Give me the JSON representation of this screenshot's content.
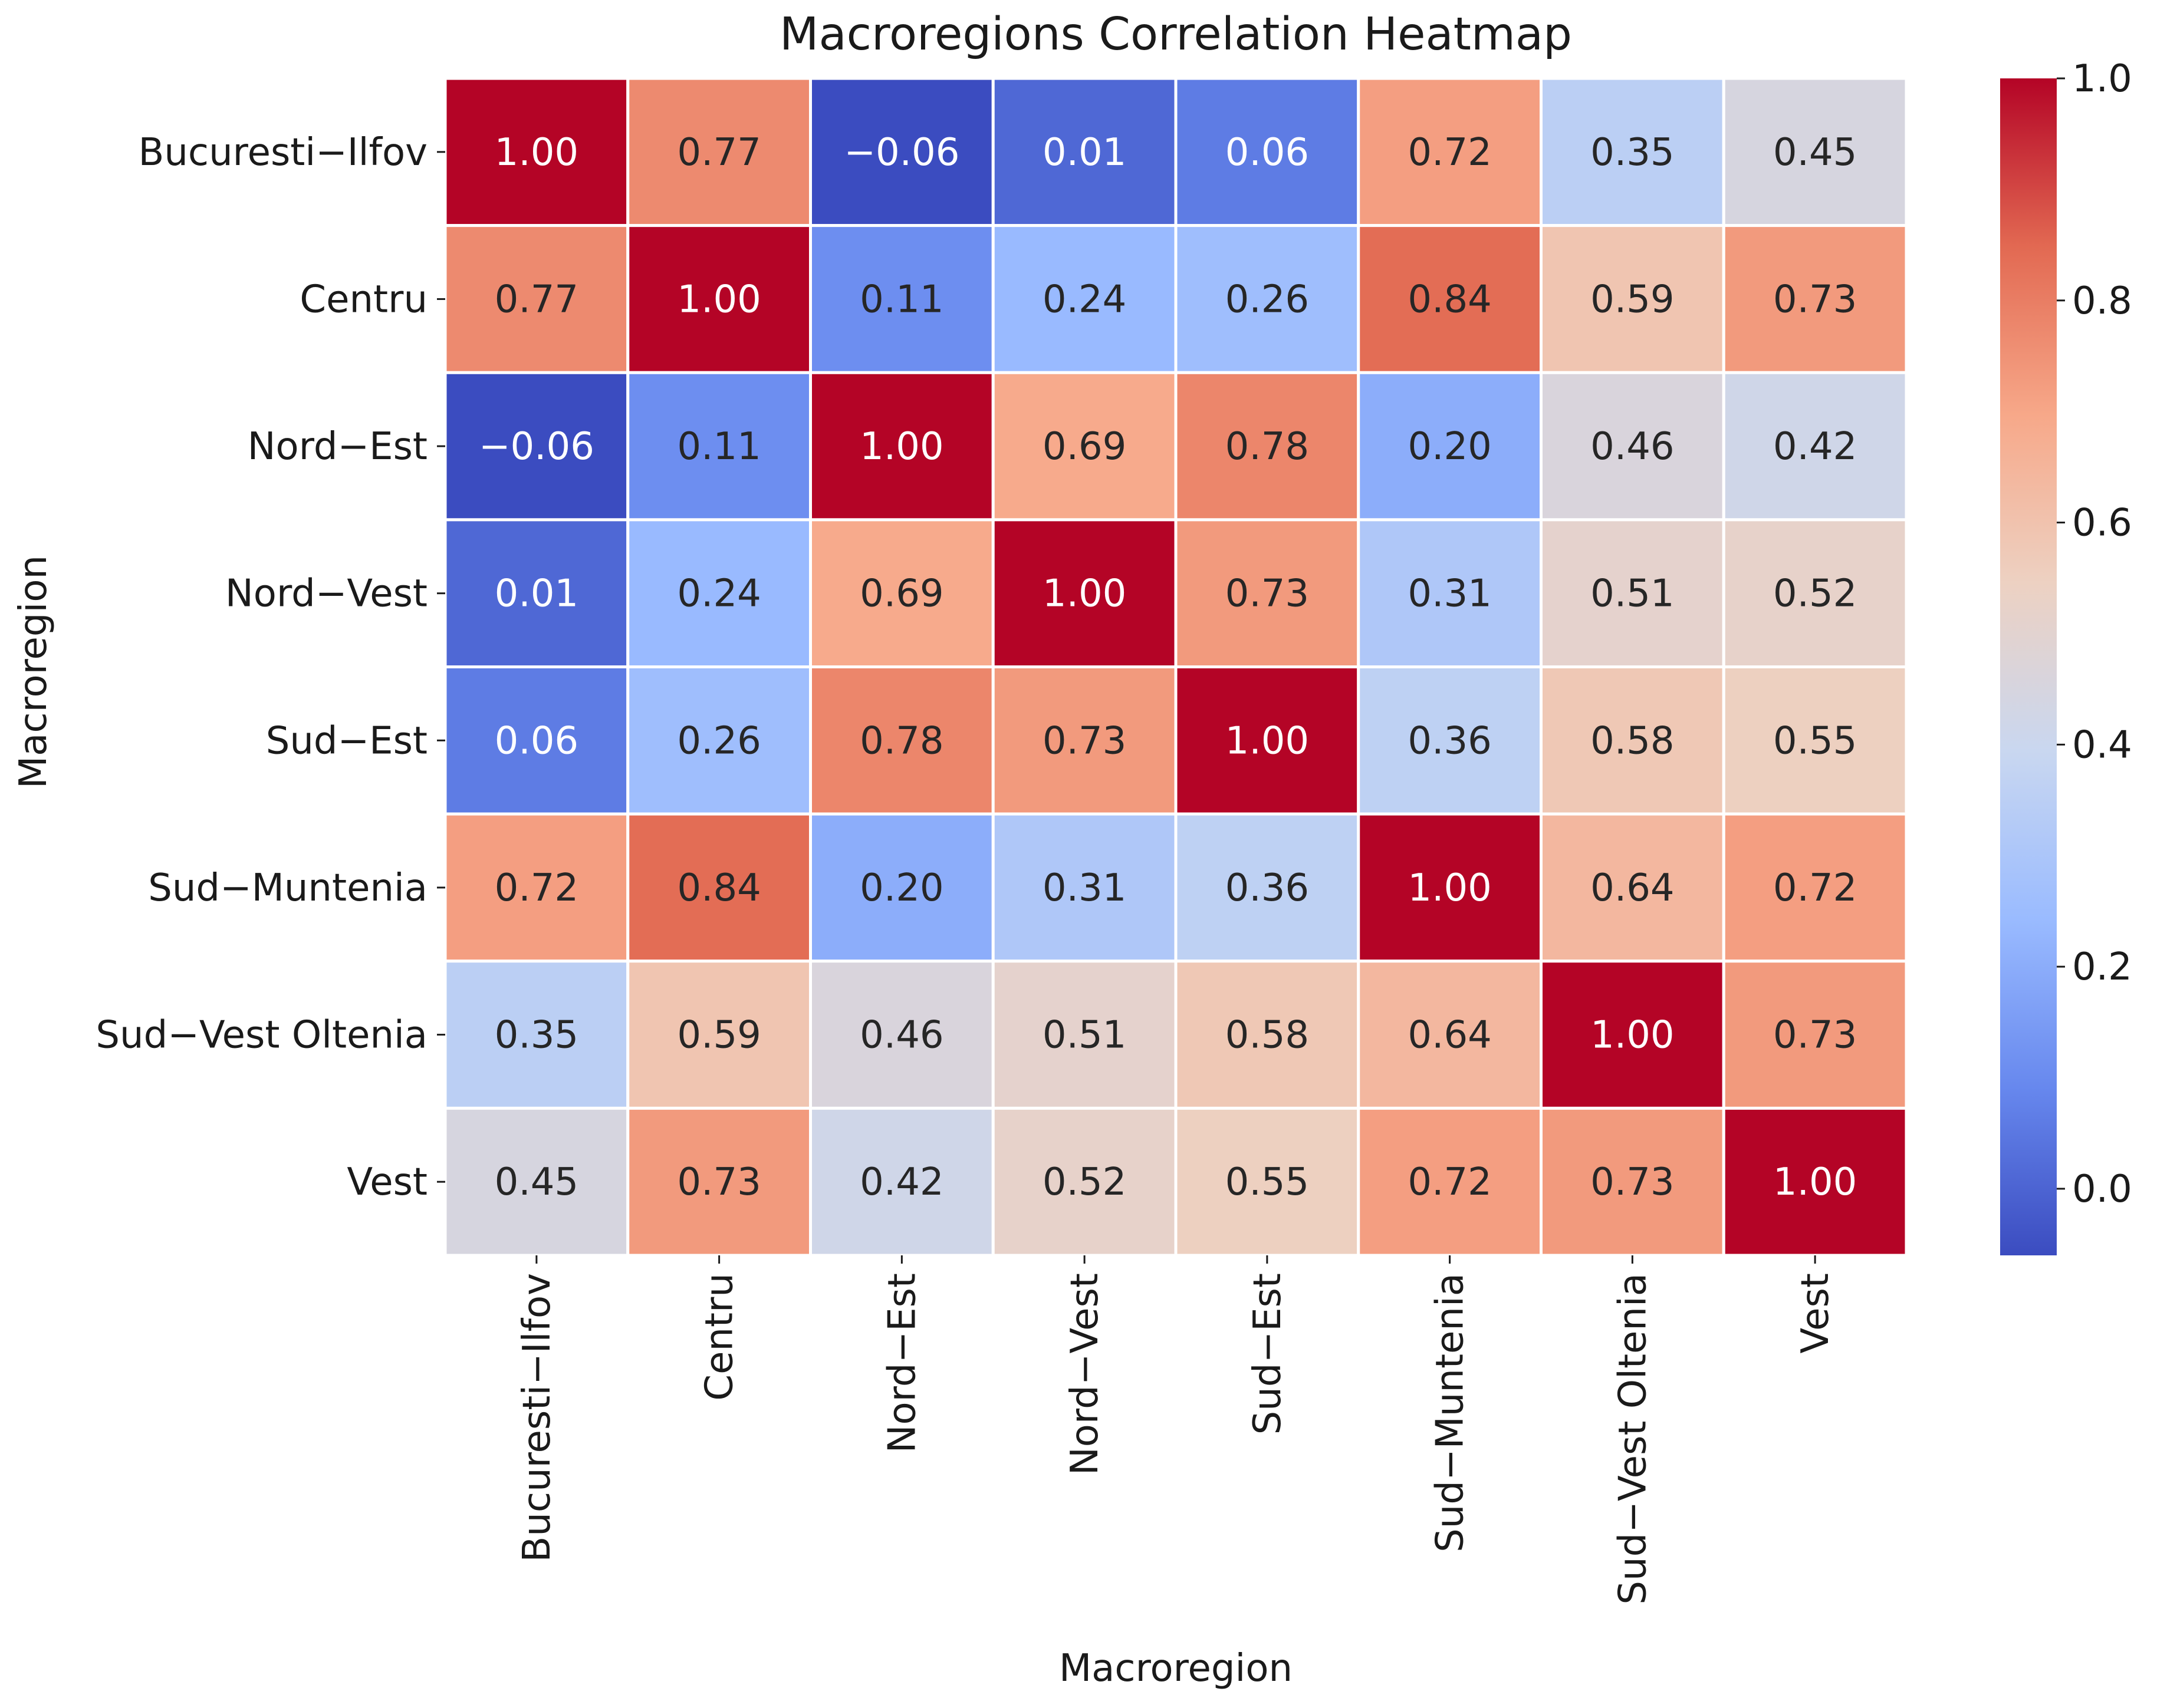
{
  "chart_data": {
    "type": "heatmap",
    "title": "Macroregions Correlation Heatmap",
    "xlabel": "Macroregion",
    "ylabel": "Macroregion",
    "categories": [
      "Bucuresti−Ilfov",
      "Centru",
      "Nord−Est",
      "Nord−Vest",
      "Sud−Est",
      "Sud−Muntenia",
      "Sud−Vest Oltenia",
      "Vest"
    ],
    "values": [
      [
        1.0,
        0.77,
        -0.06,
        0.01,
        0.06,
        0.72,
        0.35,
        0.45
      ],
      [
        0.77,
        1.0,
        0.11,
        0.24,
        0.26,
        0.84,
        0.59,
        0.73
      ],
      [
        -0.06,
        0.11,
        1.0,
        0.69,
        0.78,
        0.2,
        0.46,
        0.42
      ],
      [
        0.01,
        0.24,
        0.69,
        1.0,
        0.73,
        0.31,
        0.51,
        0.52
      ],
      [
        0.06,
        0.26,
        0.78,
        0.73,
        1.0,
        0.36,
        0.58,
        0.55
      ],
      [
        0.72,
        0.84,
        0.2,
        0.31,
        0.36,
        1.0,
        0.64,
        0.72
      ],
      [
        0.35,
        0.59,
        0.46,
        0.51,
        0.58,
        0.64,
        1.0,
        0.73
      ],
      [
        0.45,
        0.73,
        0.42,
        0.52,
        0.55,
        0.72,
        0.73,
        1.0
      ]
    ],
    "value_format": "2 decimals",
    "colormap": "coolwarm",
    "colormap_stops": [
      "#3b4cc0",
      "#6788ee",
      "#9abbff",
      "#c9d7f0",
      "#edd1c2",
      "#f7a889",
      "#e26952",
      "#b40426"
    ],
    "colorbar": {
      "range": [
        -0.06,
        1.0
      ],
      "ticks": [
        0.0,
        0.2,
        0.4,
        0.6,
        0.8,
        1.0
      ],
      "tick_labels": [
        "0.0",
        "0.2",
        "0.4",
        "0.6",
        "0.8",
        "1.0"
      ],
      "placement": "right"
    },
    "cell_separator_color": "#ffffff"
  }
}
